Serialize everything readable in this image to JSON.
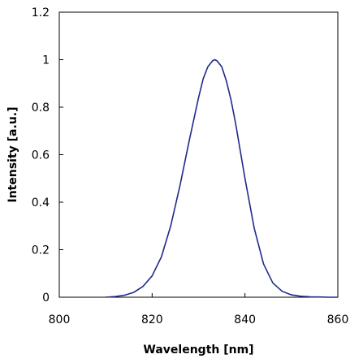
{
  "chart_data": {
    "type": "line",
    "title": "",
    "xlabel": "Wavelength [nm]",
    "ylabel": "Intensity [a.u.]",
    "xlim": [
      800,
      860
    ],
    "ylim": [
      0,
      1.2
    ],
    "x_ticks": [
      "800",
      "820",
      "840",
      "860"
    ],
    "y_ticks": [
      "0",
      "0.2",
      "0.4",
      "0.6",
      "0.8",
      "1",
      "1.2"
    ],
    "grid": false,
    "legend": "none",
    "series": [
      {
        "color": "#1f2a8a",
        "x": [
          810,
          812,
          814,
          816,
          818,
          820,
          822,
          824,
          826,
          828,
          830,
          831,
          832,
          833,
          833.5,
          834,
          835,
          836,
          837,
          838,
          840,
          842,
          844,
          846,
          848,
          850,
          852,
          854,
          856,
          858,
          860
        ],
        "y": [
          0.0,
          0.003,
          0.008,
          0.02,
          0.045,
          0.09,
          0.17,
          0.3,
          0.47,
          0.66,
          0.84,
          0.92,
          0.97,
          0.995,
          1.0,
          0.995,
          0.97,
          0.91,
          0.83,
          0.73,
          0.5,
          0.29,
          0.14,
          0.06,
          0.025,
          0.01,
          0.004,
          0.002,
          0.001,
          0.0,
          0.0
        ]
      }
    ]
  }
}
